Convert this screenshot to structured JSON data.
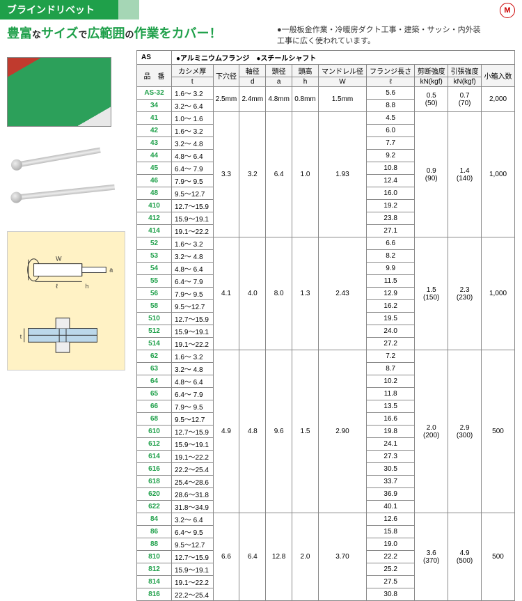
{
  "header_title": "ブラインドリベット",
  "tagline_lead": "豊富",
  "tagline_na": "な",
  "tagline_mid": "サイズ",
  "tagline_de": "で",
  "tagline_tail": "広範囲",
  "tagline_no": "の",
  "tagline_end": "作業をカバー！",
  "subdesc_bullet": "●",
  "subdesc_text": "一般板金作業・冷暖房ダクト工事・建築・サッシ・内外装工事に広く使われています。",
  "series_label": "AS",
  "series_mat1": "●アルミニウムフランジ",
  "series_mat2": "●スチールシャフト",
  "columns": {
    "c0": "品　番",
    "c1a": "カシメ厚",
    "c1b": "t",
    "c2": "下穴径",
    "c3a": "軸径",
    "c3b": "d",
    "c4a": "頭径",
    "c4b": "a",
    "c5a": "頭高",
    "c5b": "h",
    "c6a": "マンドレル径",
    "c6b": "W",
    "c7a": "フランジ長さ",
    "c7b": "ℓ",
    "c8a": "剪断強度",
    "c8b": "kN(kgf)",
    "c9a": "引張強度",
    "c9b": "kN(kgf)",
    "c10": "小箱入数"
  },
  "groups": [
    {
      "shared": {
        "hole": "2.5mm",
        "d": "2.4mm",
        "a": "4.8mm",
        "h": "0.8mm",
        "w": "1.5mm",
        "shear": "0.5",
        "shear2": "(50)",
        "tens": "0.7",
        "tens2": "(70)",
        "qty": "2,000"
      },
      "rows": [
        {
          "code": "AS-32",
          "t": "1.6～  3.2",
          "l": "5.6"
        },
        {
          "code": "34",
          "t": "3.2～  6.4",
          "l": "8.8"
        }
      ]
    },
    {
      "shared": {
        "hole": "3.3",
        "d": "3.2",
        "a": "6.4",
        "h": "1.0",
        "w": "1.93",
        "shear": "0.9",
        "shear2": "(90)",
        "tens": "1.4",
        "tens2": "(140)",
        "qty": "1,000"
      },
      "rows": [
        {
          "code": "41",
          "t": "1.0～  1.6",
          "l": "4.5"
        },
        {
          "code": "42",
          "t": "1.6～  3.2",
          "l": "6.0"
        },
        {
          "code": "43",
          "t": "3.2～  4.8",
          "l": "7.7"
        },
        {
          "code": "44",
          "t": "4.8～  6.4",
          "l": "9.2"
        },
        {
          "code": "45",
          "t": "6.4～  7.9",
          "l": "10.8"
        },
        {
          "code": "46",
          "t": "7.9～  9.5",
          "l": "12.4"
        },
        {
          "code": "48",
          "t": "9.5～12.7",
          "l": "16.0"
        },
        {
          "code": "410",
          "t": "12.7～15.9",
          "l": "19.2"
        },
        {
          "code": "412",
          "t": "15.9～19.1",
          "l": "23.8"
        },
        {
          "code": "414",
          "t": "19.1～22.2",
          "l": "27.1"
        }
      ]
    },
    {
      "shared": {
        "hole": "4.1",
        "d": "4.0",
        "a": "8.0",
        "h": "1.3",
        "w": "2.43",
        "shear": "1.5",
        "shear2": "(150)",
        "tens": "2.3",
        "tens2": "(230)",
        "qty": "1,000"
      },
      "rows": [
        {
          "code": "52",
          "t": "1.6～  3.2",
          "l": "6.6"
        },
        {
          "code": "53",
          "t": "3.2～  4.8",
          "l": "8.2"
        },
        {
          "code": "54",
          "t": "4.8～  6.4",
          "l": "9.9"
        },
        {
          "code": "55",
          "t": "6.4～  7.9",
          "l": "11.5"
        },
        {
          "code": "56",
          "t": "7.9～  9.5",
          "l": "12.9"
        },
        {
          "code": "58",
          "t": "9.5～12.7",
          "l": "16.2"
        },
        {
          "code": "510",
          "t": "12.7～15.9",
          "l": "19.5"
        },
        {
          "code": "512",
          "t": "15.9～19.1",
          "l": "24.0"
        },
        {
          "code": "514",
          "t": "19.1～22.2",
          "l": "27.2"
        }
      ]
    },
    {
      "shared": {
        "hole": "4.9",
        "d": "4.8",
        "a": "9.6",
        "h": "1.5",
        "w": "2.90",
        "shear": "2.0",
        "shear2": "(200)",
        "tens": "2.9",
        "tens2": "(300)",
        "qty": "500"
      },
      "rows": [
        {
          "code": "62",
          "t": "1.6～  3.2",
          "l": "7.2"
        },
        {
          "code": "63",
          "t": "3.2～  4.8",
          "l": "8.7"
        },
        {
          "code": "64",
          "t": "4.8～  6.4",
          "l": "10.2"
        },
        {
          "code": "65",
          "t": "6.4～  7.9",
          "l": "11.8"
        },
        {
          "code": "66",
          "t": "7.9～  9.5",
          "l": "13.5"
        },
        {
          "code": "68",
          "t": "9.5～12.7",
          "l": "16.6"
        },
        {
          "code": "610",
          "t": "12.7～15.9",
          "l": "19.8"
        },
        {
          "code": "612",
          "t": "15.9～19.1",
          "l": "24.1"
        },
        {
          "code": "614",
          "t": "19.1～22.2",
          "l": "27.3"
        },
        {
          "code": "616",
          "t": "22.2～25.4",
          "l": "30.5"
        },
        {
          "code": "618",
          "t": "25.4～28.6",
          "l": "33.7"
        },
        {
          "code": "620",
          "t": "28.6～31.8",
          "l": "36.9"
        },
        {
          "code": "622",
          "t": "31.8～34.9",
          "l": "40.1"
        }
      ]
    },
    {
      "shared": {
        "hole": "6.6",
        "d": "6.4",
        "a": "12.8",
        "h": "2.0",
        "w": "3.70",
        "shear": "3.6",
        "shear2": "(370)",
        "tens": "4.9",
        "tens2": "(500)",
        "qty": "500"
      },
      "rows": [
        {
          "code": "84",
          "t": "3.2～  6.4",
          "l": "12.6"
        },
        {
          "code": "86",
          "t": "6.4～  9.5",
          "l": "15.8"
        },
        {
          "code": "88",
          "t": "9.5～12.7",
          "l": "19.0"
        },
        {
          "code": "810",
          "t": "12.7～15.9",
          "l": "22.2"
        },
        {
          "code": "812",
          "t": "15.9～19.1",
          "l": "25.2"
        },
        {
          "code": "814",
          "t": "19.1～22.2",
          "l": "27.5"
        },
        {
          "code": "816",
          "t": "22.2～25.4",
          "l": "30.8"
        }
      ]
    }
  ],
  "diagram_labels": {
    "w": "W",
    "a": "a",
    "l": "ℓ",
    "h": "h",
    "t": "t"
  }
}
